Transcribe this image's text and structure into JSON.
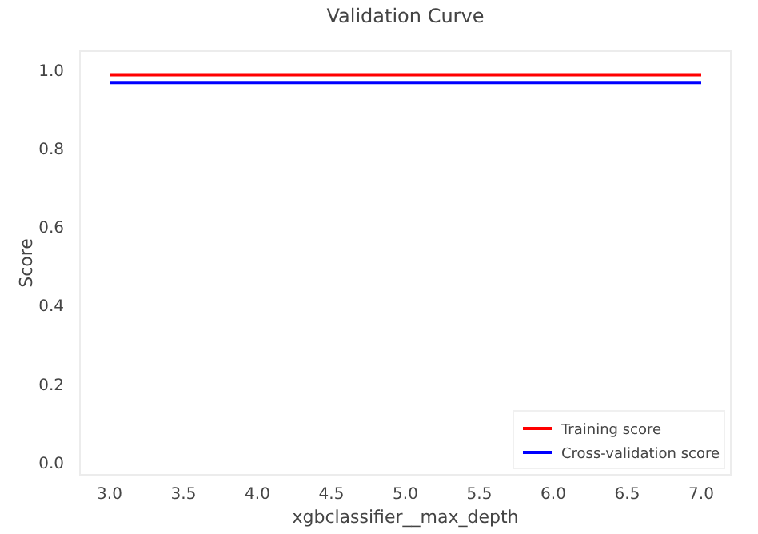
{
  "chart_data": {
    "type": "line",
    "title": "Validation Curve",
    "xlabel": "xgbclassifier__max_depth",
    "ylabel": "Score",
    "x": [
      3,
      7
    ],
    "series": [
      {
        "name": "Training score",
        "color": "#ff0000",
        "values": [
          0.99,
          0.99
        ]
      },
      {
        "name": "Cross-validation score",
        "color": "#0000ff",
        "values": [
          0.97,
          0.97
        ]
      }
    ],
    "xlim": [
      2.8,
      7.2
    ],
    "ylim": [
      -0.03,
      1.05
    ],
    "xticks": [
      {
        "value": 3,
        "label": "3.0"
      },
      3.5,
      {
        "value": 4,
        "label": "4.0"
      },
      4.5,
      {
        "value": 5,
        "label": "5.0"
      },
      5.5,
      {
        "value": 6,
        "label": "6.0"
      },
      6.5,
      {
        "value": 7,
        "label": "7.0"
      }
    ],
    "yticks": [
      {
        "value": 0,
        "label": "0.0"
      },
      0.2,
      0.4,
      0.6,
      0.8,
      {
        "value": 1,
        "label": "1.0"
      }
    ],
    "grid": false,
    "legend": "bottom right",
    "marker": "none",
    "line_style": "solid"
  }
}
